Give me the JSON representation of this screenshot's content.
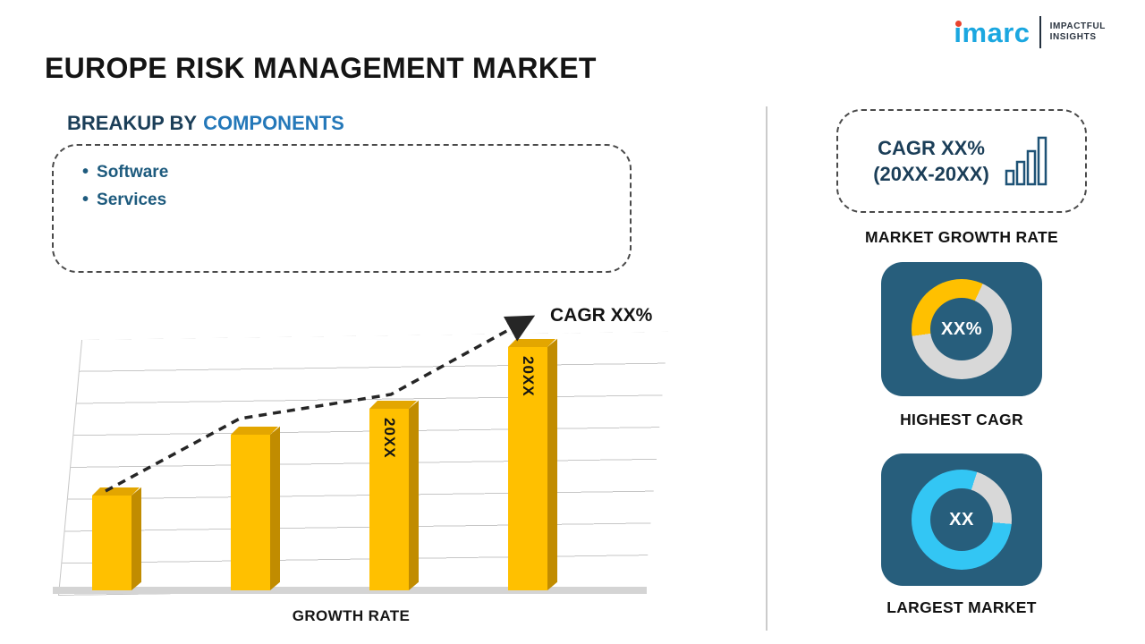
{
  "page": {
    "title": "EUROPE RISK MANAGEMENT MARKET"
  },
  "logo": {
    "brand": "imarc",
    "tagline_line1": "IMPACTFUL",
    "tagline_line2": "INSIGHTS"
  },
  "breakup": {
    "heading_prefix": "BREAKUP BY",
    "heading_highlight": "COMPONENTS",
    "items": [
      "Software",
      "Services"
    ]
  },
  "chart_data": {
    "type": "bar",
    "title": "",
    "xlabel": "GROWTH RATE",
    "ylabel": "",
    "trend_label": "CAGR XX%",
    "trend_style": "dashed-arrow",
    "categories": [
      "",
      "",
      "20XX",
      "20XX"
    ],
    "values": [
      37,
      61,
      71,
      95
    ],
    "ylim": [
      0,
      100
    ],
    "grid": true,
    "legend": "none",
    "bar_color": "#FFC000"
  },
  "sidebar": {
    "growth_card": {
      "line1": "CAGR XX%",
      "line2": "(20XX-20XX)",
      "icon": "bar-chart-icon",
      "caption": "MARKET GROWTH RATE"
    },
    "highest_cagr": {
      "value": "XX%",
      "caption": "HIGHEST CAGR",
      "accent_color": "#FFC000"
    },
    "largest_market": {
      "value": "XX",
      "caption": "LARGEST MARKET",
      "accent_color": "#33C6F4"
    }
  },
  "colors": {
    "card_bg": "#275E7C",
    "bar_gold": "#FFC000",
    "cyan": "#33C6F4",
    "heading_blue": "#2478B9",
    "navy_text": "#1E5B7E"
  }
}
